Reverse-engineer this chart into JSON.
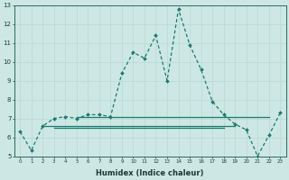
{
  "xlabel": "Humidex (Indice chaleur)",
  "ylabel": "",
  "x": [
    0,
    1,
    2,
    3,
    4,
    5,
    6,
    7,
    8,
    9,
    10,
    11,
    12,
    13,
    14,
    15,
    16,
    17,
    18,
    19,
    20,
    21,
    22,
    23
  ],
  "y_main": [
    6.3,
    5.3,
    6.6,
    7.0,
    7.1,
    7.0,
    7.2,
    7.2,
    7.1,
    9.4,
    10.5,
    10.2,
    11.4,
    9.0,
    12.8,
    10.9,
    9.6,
    7.9,
    7.2,
    6.7,
    6.4,
    5.0,
    6.1,
    7.3
  ],
  "color_main": "#1a7a6e",
  "color_lines": "#1a7a6e",
  "bg_color": "#cde8e4",
  "grid_color": "#b8d8d4",
  "ylim": [
    5,
    13
  ],
  "xlim": [
    -0.5,
    23.5
  ],
  "yticks": [
    5,
    6,
    7,
    8,
    9,
    10,
    11,
    12,
    13
  ],
  "xticks": [
    0,
    1,
    2,
    3,
    4,
    5,
    6,
    7,
    8,
    9,
    10,
    11,
    12,
    13,
    14,
    15,
    16,
    17,
    18,
    19,
    20,
    21,
    22,
    23
  ],
  "hline1_y": 6.6,
  "hline1_x0": 2,
  "hline1_x1": 19,
  "hline2_y": 6.5,
  "hline2_x0": 3,
  "hline2_x1": 18,
  "hline3_y": 7.1,
  "hline3_x0": 5,
  "hline3_x1": 22,
  "xlabel_fontsize": 6,
  "ytick_fontsize": 5,
  "xtick_fontsize": 4
}
